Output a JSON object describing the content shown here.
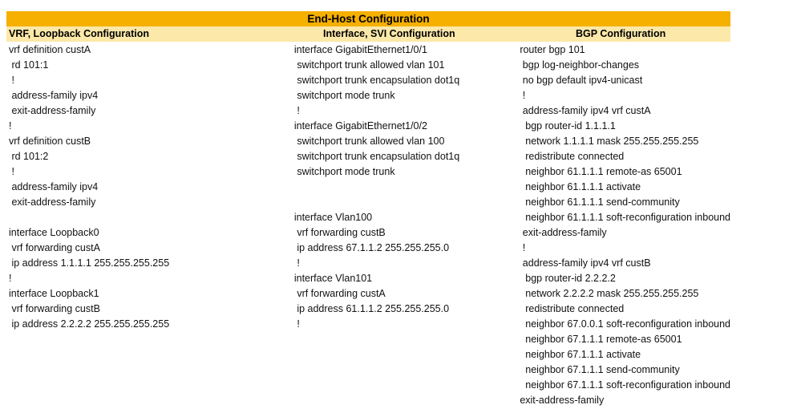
{
  "title": "End-Host Configuration",
  "colors": {
    "title_band": "#F5B000",
    "subheader_band": "#FCE8A8",
    "text": "#111111",
    "background": "#FFFFFF"
  },
  "columns": [
    {
      "header": "VRF, Loopback Configuration",
      "lines": [
        "vrf definition custA",
        " rd 101:1",
        " !",
        " address-family ipv4",
        " exit-address-family",
        "!",
        "vrf definition custB",
        " rd 101:2",
        " !",
        " address-family ipv4",
        " exit-address-family",
        "",
        "interface Loopback0",
        " vrf forwarding custA",
        " ip address 1.1.1.1 255.255.255.255",
        "!",
        "interface Loopback1",
        " vrf forwarding custB",
        " ip address 2.2.2.2 255.255.255.255"
      ]
    },
    {
      "header": "Interface, SVI Configuration",
      "lines": [
        "interface GigabitEthernet1/0/1",
        " switchport trunk allowed vlan 101",
        " switchport trunk encapsulation dot1q",
        " switchport mode trunk",
        " !",
        "interface GigabitEthernet1/0/2",
        " switchport trunk allowed vlan 100",
        " switchport trunk encapsulation dot1q",
        " switchport mode trunk",
        "",
        "",
        "interface Vlan100",
        " vrf forwarding custB",
        " ip address 67.1.1.2 255.255.255.0",
        " !",
        "interface Vlan101",
        " vrf forwarding custA",
        " ip address 61.1.1.2 255.255.255.0",
        " !"
      ]
    },
    {
      "header": "BGP Configuration",
      "lines": [
        "router bgp 101",
        " bgp log-neighbor-changes",
        " no bgp default ipv4-unicast",
        " !",
        " address-family ipv4 vrf custA",
        "  bgp router-id 1.1.1.1",
        "  network 1.1.1.1 mask 255.255.255.255",
        "  redistribute connected",
        "  neighbor 61.1.1.1 remote-as 65001",
        "  neighbor 61.1.1.1 activate",
        "  neighbor 61.1.1.1 send-community",
        "  neighbor 61.1.1.1 soft-reconfiguration inbound",
        " exit-address-family",
        " !",
        " address-family ipv4 vrf custB",
        "  bgp router-id 2.2.2.2",
        "  network 2.2.2.2 mask 255.255.255.255",
        "  redistribute connected",
        "  neighbor 67.0.0.1 soft-reconfiguration inbound",
        "  neighbor 67.1.1.1 remote-as 65001",
        "  neighbor 67.1.1.1 activate",
        "  neighbor 67.1.1.1 send-community",
        "  neighbor 67.1.1.1 soft-reconfiguration inbound",
        "exit-address-family"
      ]
    }
  ]
}
